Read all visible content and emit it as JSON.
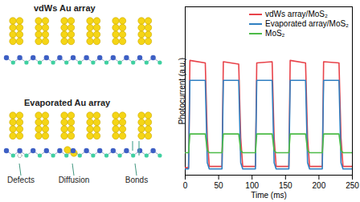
{
  "chart_data": {
    "type": "line",
    "x_label": "Time (ms)",
    "y_label": "Photocurrent (a.u.)",
    "x": [
      0,
      5,
      7,
      30,
      33,
      36,
      55,
      57,
      80,
      83,
      86,
      105,
      107,
      130,
      133,
      136,
      155,
      157,
      180,
      183,
      186,
      205,
      207,
      230,
      233,
      236,
      250
    ],
    "series": [
      {
        "name": "vdWs array/MoS₂",
        "color": "#e8434a",
        "values": [
          0.06,
          0.06,
          0.92,
          0.9,
          0.3,
          0.07,
          0.07,
          0.91,
          0.89,
          0.3,
          0.07,
          0.07,
          0.9,
          0.91,
          0.3,
          0.07,
          0.07,
          0.92,
          0.9,
          0.3,
          0.07,
          0.07,
          0.91,
          0.9,
          0.3,
          0.07,
          0.07
        ]
      },
      {
        "name": "Evaporated array/MoS₂",
        "color": "#2f7fc1",
        "values": [
          0.05,
          0.05,
          0.76,
          0.76,
          0.1,
          0.05,
          0.05,
          0.76,
          0.76,
          0.1,
          0.05,
          0.05,
          0.76,
          0.76,
          0.1,
          0.05,
          0.05,
          0.76,
          0.76,
          0.1,
          0.05,
          0.05,
          0.76,
          0.76,
          0.1,
          0.05,
          0.05
        ]
      },
      {
        "name": "MoS₂",
        "color": "#4cbb47",
        "values": [
          0.18,
          0.18,
          0.33,
          0.33,
          0.2,
          0.18,
          0.18,
          0.33,
          0.33,
          0.2,
          0.18,
          0.18,
          0.33,
          0.33,
          0.2,
          0.18,
          0.18,
          0.33,
          0.33,
          0.2,
          0.18,
          0.18,
          0.33,
          0.33,
          0.2,
          0.18,
          0.18
        ]
      }
    ],
    "xlim": [
      0,
      250
    ],
    "xticks": [
      0,
      50,
      100,
      150,
      200,
      250
    ],
    "ylim": [
      0,
      1.35
    ],
    "yticks": [],
    "tick_labels": "x",
    "legend": "top-right",
    "grid": false
  },
  "diagram": {
    "panels": [
      {
        "title": "vdWs Au array",
        "labels": []
      },
      {
        "title": "Evaporated Au array",
        "labels": [
          "Defects",
          "Diffusion",
          "Bonds"
        ]
      }
    ]
  }
}
